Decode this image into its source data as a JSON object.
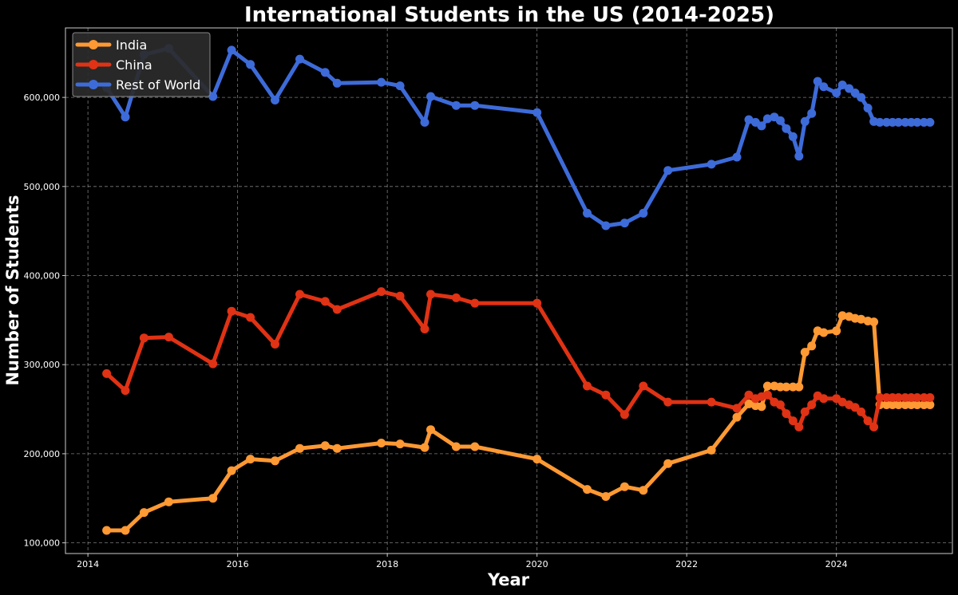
{
  "chart_data": {
    "type": "line",
    "title": "International Students in the US (2014-2025)",
    "xlabel": "Year",
    "ylabel": "Number of Students",
    "xlim": [
      2013.7,
      2025.55
    ],
    "ylim": [
      88000,
      678000
    ],
    "x_ticks": [
      2014,
      2016,
      2018,
      2020,
      2022,
      2024
    ],
    "x_tick_labels": [
      "2014",
      "2016",
      "2018",
      "2020",
      "2022",
      "2024"
    ],
    "y_ticks": [
      100000,
      200000,
      300000,
      400000,
      500000,
      600000
    ],
    "y_tick_labels": [
      "100,000",
      "200,000",
      "300,000",
      "400,000",
      "500,000",
      "600,000"
    ],
    "grid": true,
    "legend_position": "top-left",
    "series": [
      {
        "name": "India",
        "color": "#ff9933",
        "points": [
          [
            2014.25,
            114000
          ],
          [
            2014.5,
            114000
          ],
          [
            2014.75,
            134000
          ],
          [
            2015.08,
            146000
          ],
          [
            2015.67,
            150000
          ],
          [
            2015.92,
            181000
          ],
          [
            2016.17,
            194000
          ],
          [
            2016.5,
            192000
          ],
          [
            2016.83,
            206000
          ],
          [
            2017.17,
            209000
          ],
          [
            2017.33,
            206000
          ],
          [
            2017.92,
            212000
          ],
          [
            2018.17,
            211000
          ],
          [
            2018.5,
            207000
          ],
          [
            2018.58,
            227000
          ],
          [
            2018.92,
            208000
          ],
          [
            2019.17,
            208000
          ],
          [
            2020.0,
            194000
          ],
          [
            2020.67,
            160000
          ],
          [
            2020.92,
            152000
          ],
          [
            2021.17,
            163000
          ],
          [
            2021.42,
            159000
          ],
          [
            2021.75,
            189000
          ],
          [
            2022.33,
            204000
          ],
          [
            2022.67,
            241000
          ],
          [
            2022.83,
            256000
          ],
          [
            2022.92,
            254000
          ],
          [
            2023.0,
            253000
          ],
          [
            2023.08,
            276000
          ],
          [
            2023.17,
            276000
          ],
          [
            2023.25,
            275000
          ],
          [
            2023.33,
            275000
          ],
          [
            2023.42,
            275000
          ],
          [
            2023.5,
            275000
          ],
          [
            2023.58,
            314000
          ],
          [
            2023.67,
            321000
          ],
          [
            2023.75,
            338000
          ],
          [
            2023.83,
            336000
          ],
          [
            2024.0,
            338000
          ],
          [
            2024.08,
            355000
          ],
          [
            2024.17,
            354000
          ],
          [
            2024.25,
            352000
          ],
          [
            2024.33,
            351000
          ],
          [
            2024.42,
            349000
          ],
          [
            2024.5,
            348000
          ],
          [
            2024.58,
            255000
          ],
          [
            2024.67,
            255000
          ],
          [
            2024.75,
            255000
          ],
          [
            2024.83,
            255000
          ],
          [
            2024.92,
            255000
          ],
          [
            2025.0,
            255000
          ],
          [
            2025.08,
            255000
          ],
          [
            2025.17,
            255000
          ],
          [
            2025.25,
            255000
          ]
        ]
      },
      {
        "name": "China",
        "color": "#e03214",
        "points": [
          [
            2014.25,
            290000
          ],
          [
            2014.5,
            271000
          ],
          [
            2014.75,
            330000
          ],
          [
            2015.08,
            331000
          ],
          [
            2015.67,
            301000
          ],
          [
            2015.92,
            360000
          ],
          [
            2016.17,
            353000
          ],
          [
            2016.5,
            323000
          ],
          [
            2016.83,
            379000
          ],
          [
            2017.17,
            371000
          ],
          [
            2017.33,
            362000
          ],
          [
            2017.92,
            382000
          ],
          [
            2018.17,
            377000
          ],
          [
            2018.5,
            340000
          ],
          [
            2018.58,
            379000
          ],
          [
            2018.92,
            375000
          ],
          [
            2019.17,
            369000
          ],
          [
            2020.0,
            369000
          ],
          [
            2020.67,
            276000
          ],
          [
            2020.92,
            266000
          ],
          [
            2021.17,
            244000
          ],
          [
            2021.42,
            276000
          ],
          [
            2021.75,
            258000
          ],
          [
            2022.33,
            258000
          ],
          [
            2022.67,
            251000
          ],
          [
            2022.83,
            266000
          ],
          [
            2022.92,
            262000
          ],
          [
            2023.0,
            264000
          ],
          [
            2023.08,
            266000
          ],
          [
            2023.17,
            258000
          ],
          [
            2023.25,
            255000
          ],
          [
            2023.33,
            245000
          ],
          [
            2023.42,
            237000
          ],
          [
            2023.5,
            230000
          ],
          [
            2023.58,
            247000
          ],
          [
            2023.67,
            255000
          ],
          [
            2023.75,
            265000
          ],
          [
            2023.83,
            262000
          ],
          [
            2024.0,
            262000
          ],
          [
            2024.08,
            258000
          ],
          [
            2024.17,
            255000
          ],
          [
            2024.25,
            252000
          ],
          [
            2024.33,
            247000
          ],
          [
            2024.42,
            237000
          ],
          [
            2024.5,
            230000
          ],
          [
            2024.58,
            263000
          ],
          [
            2024.67,
            263000
          ],
          [
            2024.75,
            263000
          ],
          [
            2024.83,
            263000
          ],
          [
            2024.92,
            263000
          ],
          [
            2025.0,
            263000
          ],
          [
            2025.08,
            263000
          ],
          [
            2025.17,
            263000
          ],
          [
            2025.25,
            263000
          ]
        ]
      },
      {
        "name": "Rest of World",
        "color": "#3d6bd9",
        "points": [
          [
            2014.25,
            611000
          ],
          [
            2014.5,
            578000
          ],
          [
            2014.75,
            648000
          ],
          [
            2015.08,
            655000
          ],
          [
            2015.67,
            601000
          ],
          [
            2015.92,
            653000
          ],
          [
            2016.17,
            637000
          ],
          [
            2016.5,
            597000
          ],
          [
            2016.83,
            643000
          ],
          [
            2017.17,
            628000
          ],
          [
            2017.33,
            616000
          ],
          [
            2017.92,
            617000
          ],
          [
            2018.17,
            613000
          ],
          [
            2018.5,
            572000
          ],
          [
            2018.58,
            601000
          ],
          [
            2018.92,
            591000
          ],
          [
            2019.17,
            591000
          ],
          [
            2020.0,
            583000
          ],
          [
            2020.67,
            470000
          ],
          [
            2020.92,
            456000
          ],
          [
            2021.17,
            459000
          ],
          [
            2021.42,
            470000
          ],
          [
            2021.75,
            518000
          ],
          [
            2022.33,
            525000
          ],
          [
            2022.67,
            533000
          ],
          [
            2022.83,
            575000
          ],
          [
            2022.92,
            572000
          ],
          [
            2023.0,
            568000
          ],
          [
            2023.08,
            576000
          ],
          [
            2023.17,
            578000
          ],
          [
            2023.25,
            574000
          ],
          [
            2023.33,
            565000
          ],
          [
            2023.42,
            556000
          ],
          [
            2023.5,
            534000
          ],
          [
            2023.58,
            573000
          ],
          [
            2023.67,
            582000
          ],
          [
            2023.75,
            618000
          ],
          [
            2023.83,
            612000
          ],
          [
            2024.0,
            605000
          ],
          [
            2024.08,
            614000
          ],
          [
            2024.17,
            610000
          ],
          [
            2024.25,
            605000
          ],
          [
            2024.33,
            600000
          ],
          [
            2024.42,
            588000
          ],
          [
            2024.5,
            573000
          ],
          [
            2024.58,
            572000
          ],
          [
            2024.67,
            572000
          ],
          [
            2024.75,
            572000
          ],
          [
            2024.83,
            572000
          ],
          [
            2024.92,
            572000
          ],
          [
            2025.0,
            572000
          ],
          [
            2025.08,
            572000
          ],
          [
            2025.17,
            572000
          ],
          [
            2025.25,
            572000
          ]
        ]
      }
    ]
  }
}
